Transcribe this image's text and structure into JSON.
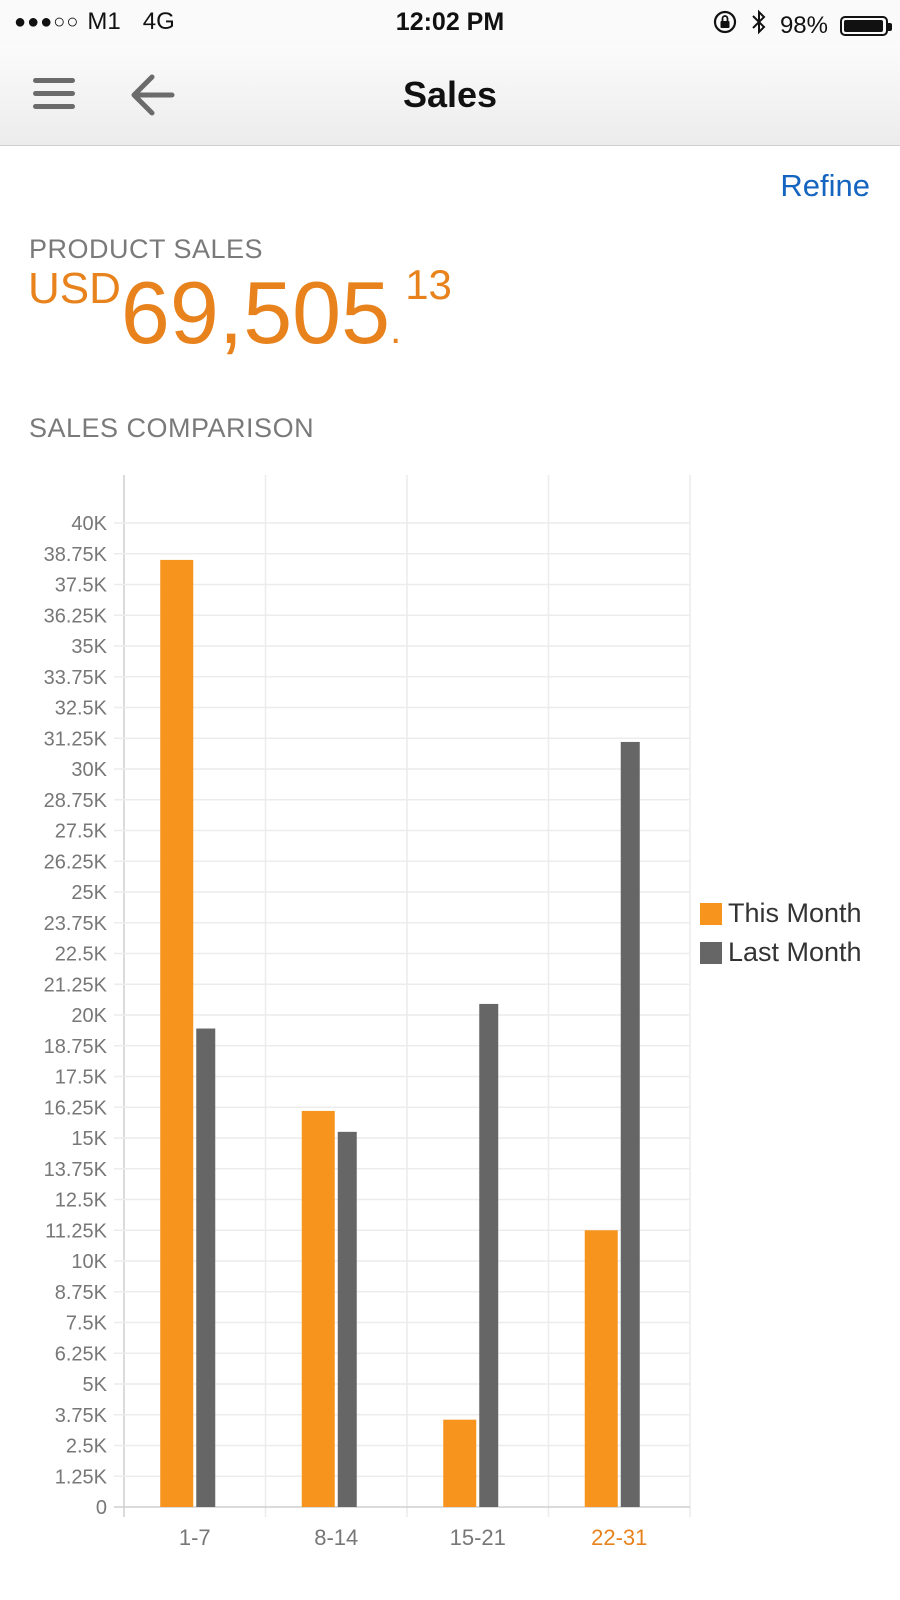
{
  "status_bar": {
    "signal": "●●●○○",
    "carrier": "M1",
    "network": "4G",
    "time": "12:02 PM",
    "battery_text": "98%",
    "battery_level": 0.98,
    "icons": [
      "orientation-lock-icon",
      "bluetooth-icon",
      "battery-icon"
    ]
  },
  "nav": {
    "title": "Sales",
    "icons": [
      "hamburger-menu-icon",
      "back-arrow-icon"
    ]
  },
  "refine_label": "Refine",
  "product_sales": {
    "label": "PRODUCT SALES",
    "currency": "USD",
    "whole": "69,505",
    "dot": ".",
    "cents": "13"
  },
  "comparison_label": "SALES COMPARISON",
  "colors": {
    "accent": "#e8821c",
    "this_month": "#f7941d",
    "last_month": "#666666",
    "link": "#1565c0",
    "highlight_category": "#e8821c"
  },
  "chart_data": {
    "type": "bar",
    "categories": [
      "1-7",
      "8-14",
      "15-21",
      "22-31"
    ],
    "highlighted_category": "22-31",
    "series": [
      {
        "name": "This Month",
        "values": [
          38500,
          16100,
          3550,
          11250
        ]
      },
      {
        "name": "Last Month",
        "values": [
          19450,
          15250,
          20450,
          31100
        ]
      }
    ],
    "yticks": [
      "0",
      "1.25K",
      "2.5K",
      "3.75K",
      "5K",
      "6.25K",
      "7.5K",
      "8.75K",
      "10K",
      "11.25K",
      "12.5K",
      "13.75K",
      "15K",
      "16.25K",
      "17.5K",
      "18.75K",
      "20K",
      "21.25K",
      "22.5K",
      "23.75K",
      "25K",
      "26.25K",
      "27.5K",
      "28.75K",
      "30K",
      "31.25K",
      "32.5K",
      "33.75K",
      "35K",
      "36.25K",
      "37.5K",
      "38.75K",
      "40K"
    ],
    "ylim": [
      0,
      40000
    ],
    "grid": true,
    "legend_position": "right",
    "title": "",
    "xlabel": "",
    "ylabel": ""
  }
}
